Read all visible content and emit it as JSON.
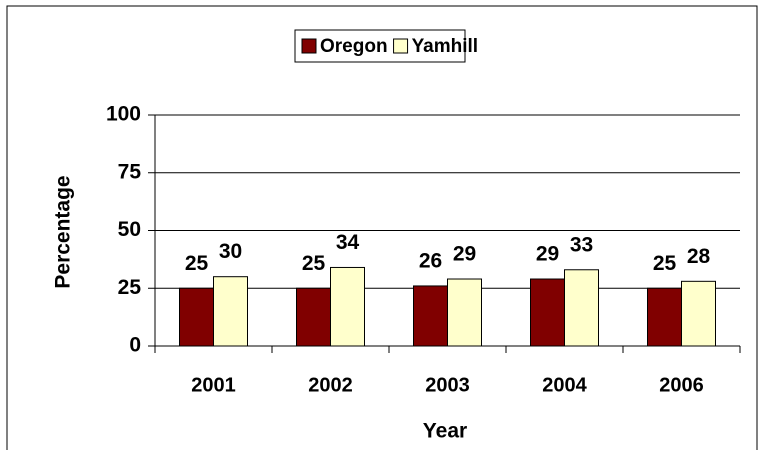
{
  "chart_data": {
    "type": "bar",
    "xlabel": "Year",
    "ylabel": "Percentage",
    "categories": [
      "2001",
      "2002",
      "2003",
      "2004",
      "2006"
    ],
    "series": [
      {
        "name": "Oregon",
        "color": "#800000",
        "values": [
          25,
          25,
          26,
          29,
          25
        ]
      },
      {
        "name": "Yamhill",
        "color": "#ffffcc",
        "values": [
          30,
          34,
          29,
          33,
          28
        ]
      }
    ],
    "ylim": [
      0,
      100
    ],
    "yticks": [
      0,
      25,
      50,
      75,
      100
    ],
    "grid": true,
    "legend": "top"
  }
}
